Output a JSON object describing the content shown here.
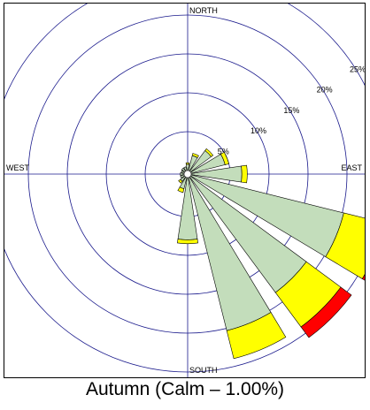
{
  "caption": "Autumn (Calm – 1.00%)",
  "chart_data": {
    "type": "windrose",
    "title": "",
    "calm_percent": 1.0,
    "direction_labels": {
      "north": "NORTH",
      "east": "EAST",
      "south": "SOUTH",
      "west": "WEST"
    },
    "ring_values": [
      5,
      10,
      15,
      20,
      25
    ],
    "ring_labels": [
      "5%",
      "10%",
      "15%",
      "20%",
      "25%"
    ],
    "max_percent": 25,
    "grid": true,
    "bin_colors": [
      "#c3ddbb",
      "#ffff00",
      "#ff0000"
    ],
    "sectors": [
      {
        "direction_deg": 0,
        "values": [
          0.8,
          0.2,
          0.0
        ]
      },
      {
        "direction_deg": 22.5,
        "values": [
          2.0,
          0.3,
          0.0
        ]
      },
      {
        "direction_deg": 45,
        "values": [
          3.3,
          0.3,
          0.0
        ]
      },
      {
        "direction_deg": 67.5,
        "values": [
          4.5,
          0.5,
          0.0
        ]
      },
      {
        "direction_deg": 90,
        "values": [
          6.5,
          0.7,
          0.0
        ]
      },
      {
        "direction_deg": 112.5,
        "values": [
          20.2,
          5.5,
          1.7
        ]
      },
      {
        "direction_deg": 135,
        "values": [
          18.5,
          5.5,
          1.7
        ]
      },
      {
        "direction_deg": 157.5,
        "values": [
          20.3,
          3.7,
          0.0
        ]
      },
      {
        "direction_deg": 180,
        "values": [
          8.0,
          0.5,
          0.0
        ]
      },
      {
        "direction_deg": 202.5,
        "values": [
          1.5,
          0.5,
          0.0
        ]
      },
      {
        "direction_deg": 225,
        "values": [
          0.7,
          0.3,
          0.0
        ]
      },
      {
        "direction_deg": 247.5,
        "values": [
          0.5,
          0.0,
          0.0
        ]
      },
      {
        "direction_deg": 270,
        "values": [
          0.5,
          0.0,
          0.0
        ]
      },
      {
        "direction_deg": 292.5,
        "values": [
          0.4,
          0.0,
          0.0
        ]
      },
      {
        "direction_deg": 315,
        "values": [
          0.5,
          0.0,
          0.0
        ]
      },
      {
        "direction_deg": 337.5,
        "values": [
          0.5,
          0.0,
          0.0
        ]
      }
    ]
  }
}
